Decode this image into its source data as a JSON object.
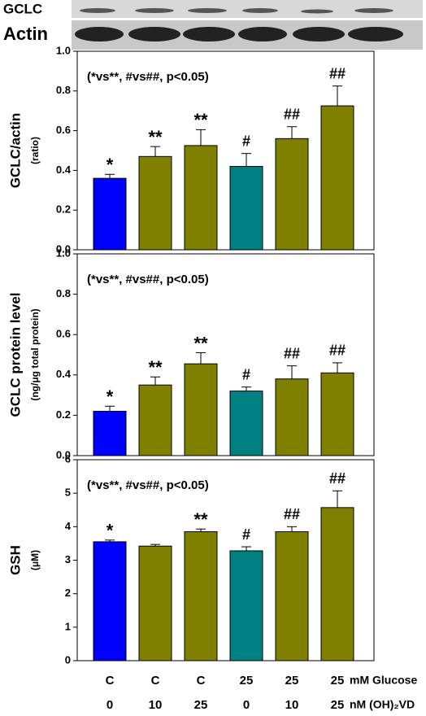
{
  "blot": {
    "labels": [
      "GCLC",
      "Actin"
    ]
  },
  "chart_data": [
    {
      "type": "bar",
      "ylabel": "GCLC/actin",
      "yunit": "(ratio)",
      "annotation": "(*vs**, #vs##, p<0.05)",
      "values": [
        0.36,
        0.47,
        0.525,
        0.42,
        0.56,
        0.725
      ],
      "errors": [
        0.02,
        0.05,
        0.08,
        0.065,
        0.06,
        0.1
      ],
      "colors": [
        "#0000ff",
        "#808000",
        "#808000",
        "#008080",
        "#808000",
        "#808000"
      ],
      "labels": [
        "*",
        "**",
        "**",
        "#",
        "##",
        "##"
      ],
      "ylim": [
        0,
        1
      ],
      "yticks": [
        {
          "value": 0,
          "label": "0.0"
        },
        0.2,
        0.4,
        0.6,
        0.8,
        {
          "value": 1,
          "label": "1.0"
        }
      ]
    },
    {
      "type": "bar",
      "ylabel": "GCLC protein level",
      "yunit": "(ng/μg total protein)",
      "annotation": "(*vs**, #vs##, p<0.05)",
      "values": [
        0.22,
        0.35,
        0.455,
        0.32,
        0.38,
        0.41
      ],
      "errors": [
        0.025,
        0.04,
        0.055,
        0.02,
        0.065,
        0.05
      ],
      "colors": [
        "#0000ff",
        "#808000",
        "#808000",
        "#008080",
        "#808000",
        "#808000"
      ],
      "labels": [
        "*",
        "**",
        "**",
        "#",
        "##",
        "##"
      ],
      "ylim": [
        0,
        1
      ],
      "yticks": [
        {
          "value": 0,
          "label": "0.0"
        },
        0.2,
        0.4,
        0.6,
        0.8,
        {
          "value": 1,
          "label": "1.0"
        }
      ]
    },
    {
      "type": "bar",
      "ylabel": "GSH",
      "yunit": "(μM)",
      "annotation": "(*vs**, #vs##, p<0.05)",
      "values": [
        3.55,
        3.42,
        3.85,
        3.28,
        3.85,
        4.57
      ],
      "errors": [
        0.05,
        0.05,
        0.08,
        0.12,
        0.15,
        0.5
      ],
      "colors": [
        "#0000ff",
        "#808000",
        "#808000",
        "#008080",
        "#808000",
        "#808000"
      ],
      "labels": [
        "*",
        "",
        "**",
        "#",
        "##",
        "##"
      ],
      "ylim": [
        0,
        6
      ],
      "yticks": [
        0,
        1,
        2,
        3,
        4,
        5,
        6
      ]
    }
  ],
  "x_axis": {
    "rows": [
      {
        "categories": [
          "C",
          "C",
          "C",
          "25",
          "25",
          "25"
        ],
        "unit": "mM Glucose"
      },
      {
        "categories": [
          "0",
          "10",
          "25",
          "0",
          "10",
          "25"
        ],
        "unit": "nM (OH)₂VD"
      }
    ]
  }
}
